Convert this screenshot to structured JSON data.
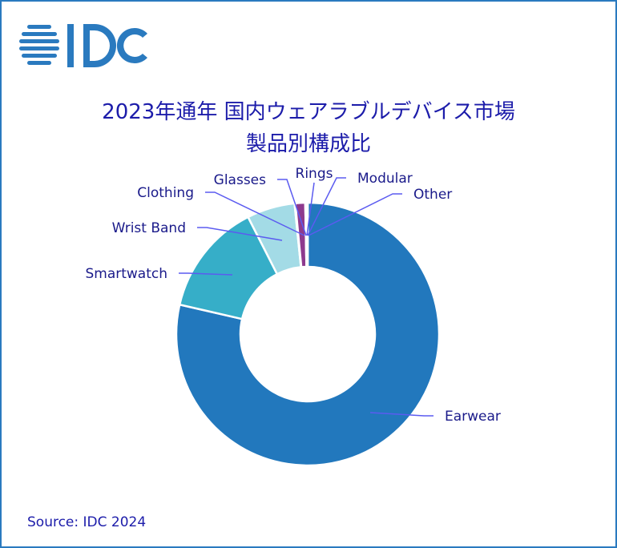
{
  "logo_text": "IDC",
  "chart_data": {
    "type": "pie",
    "title_line1": "2023年通年 国内ウェアラブルデバイス市場",
    "title_line2": "製品別構成比",
    "source": "Source: IDC 2024",
    "unit": "%",
    "slices": [
      {
        "name": "Earwear",
        "value": 78.6,
        "color": "#2278bd"
      },
      {
        "name": "Smartwatch",
        "value": 13.9,
        "color": "#36aec8"
      },
      {
        "name": "Wrist Band",
        "value": 5.9,
        "color": "#a3dbe6"
      },
      {
        "name": "Clothing",
        "value": 0.1,
        "color": "#c6e7ef"
      },
      {
        "name": "Glasses",
        "value": 1.2,
        "color": "#8e3a8e"
      },
      {
        "name": "Rings",
        "value": 0.1,
        "color": "#5b3aa0"
      },
      {
        "name": "Modular",
        "value": 0.1,
        "color": "#3a5ab0"
      },
      {
        "name": "Other",
        "value": 0.1,
        "color": "#2a6ab5"
      }
    ]
  }
}
